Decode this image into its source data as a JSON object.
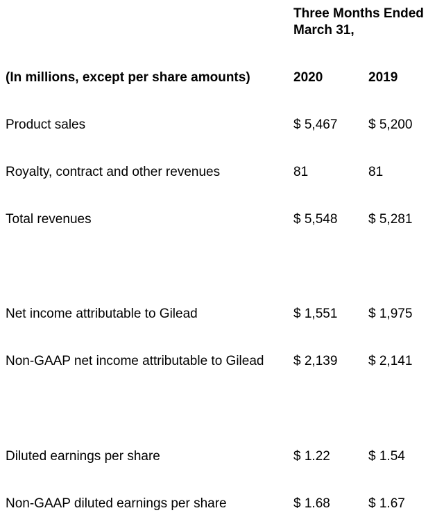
{
  "header": {
    "period_line1": "Three Months Ended",
    "period_line2": "March 31,",
    "units_label": "(In millions, except per share amounts)",
    "col_2020": "2020",
    "col_2019": "2019"
  },
  "rows": [
    {
      "label": "Product sales",
      "v2020": "$ 5,467",
      "v2019": "$ 5,200"
    },
    {
      "label": "Royalty, contract and other revenues",
      "v2020": "81",
      "v2019": "81"
    },
    {
      "label": "Total revenues",
      "v2020": "$ 5,548",
      "v2019": "$ 5,281"
    },
    {
      "label": "Net income attributable to Gilead",
      "v2020": "$ 1,551",
      "v2019": "$ 1,975"
    },
    {
      "label": "Non-GAAP net income attributable to Gilead",
      "v2020": "$ 2,139",
      "v2019": "$ 2,141"
    },
    {
      "label": "Diluted earnings per share",
      "v2020": "$ 1.22",
      "v2019": "$ 1.54"
    },
    {
      "label": "Non-GAAP diluted earnings per share",
      "v2020": "$ 1.68",
      "v2019": "$ 1.67"
    }
  ]
}
